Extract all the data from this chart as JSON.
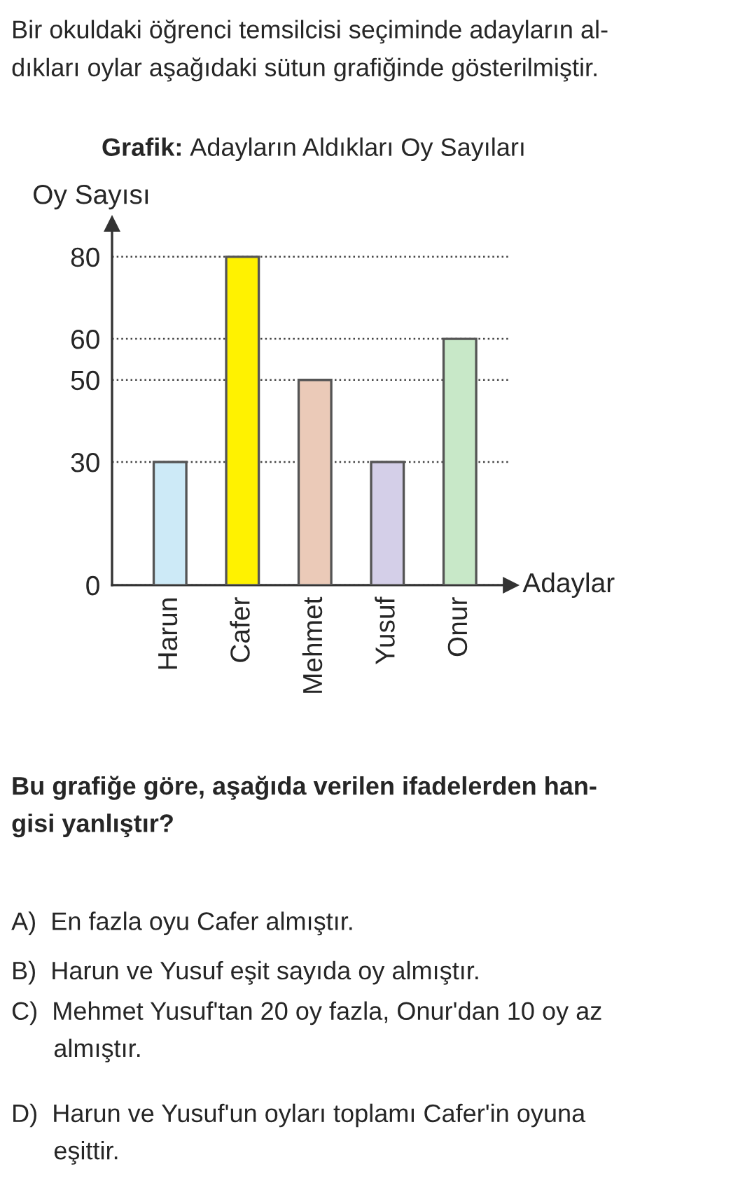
{
  "chart_data": {
    "type": "bar",
    "title": "Grafik: Adayların Aldıkları Oy Sayıları",
    "xlabel": "Adaylar",
    "ylabel": "Oy Sayısı",
    "categories": [
      "Harun",
      "Cafer",
      "Mehmet",
      "Yusuf",
      "Onur"
    ],
    "values": [
      30,
      80,
      50,
      30,
      60
    ],
    "colors": [
      "#cdeaf7",
      "#fff200",
      "#ebcab8",
      "#d4cfe8",
      "#c8e8c8"
    ],
    "ylim": [
      0,
      88
    ],
    "yticks": [
      0,
      30,
      50,
      60,
      80
    ],
    "grid": "y",
    "line_style": "dotted",
    "annotations": [
      "Bir okuldaki öğrenci temsilcisi seçiminde adayların al-\ndıkları oylar aşağıdaki sütun grafiğinde gösterilmiştir.",
      "Bu grafiğe göre, aşağıda verilen ifadelerden han-\ngisi yanlıştır?",
      "A)  En fazla oyu Cafer almıştır.",
      "B)  Harun ve Yusuf eşit sayıda oy almıştır.",
      "C)  Mehmet Yusuf'tan 20 oy fazla, Onur'dan 10 oy az\n      almıştır.",
      "D)  Harun ve Yusuf'un oyları toplamı Cafer'in oyuna\n      eşittir."
    ]
  }
}
